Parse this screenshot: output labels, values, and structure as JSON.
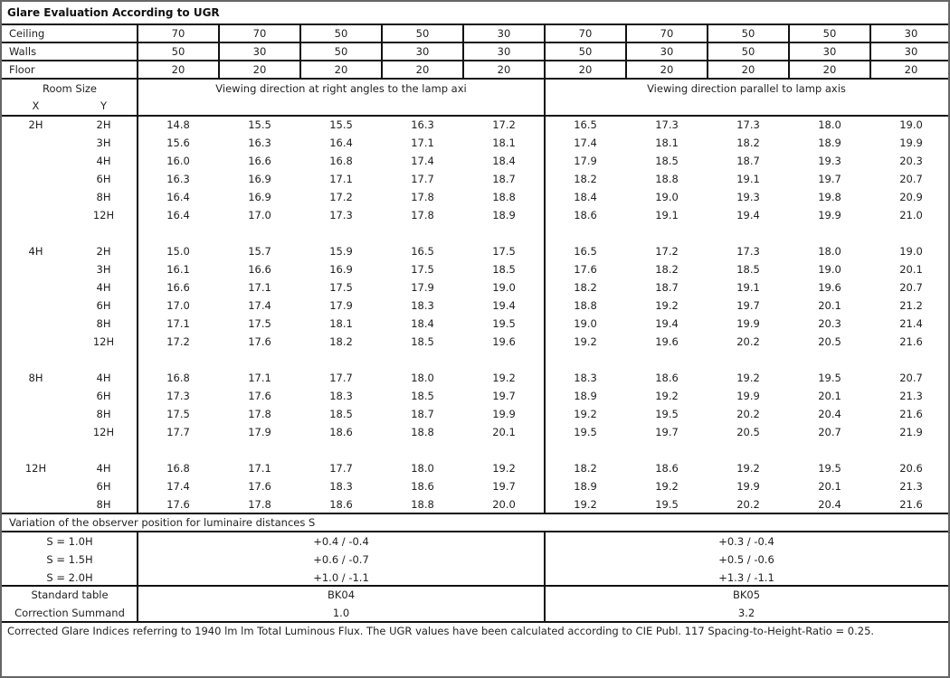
{
  "title": "Glare Evaluation According to UGR",
  "reflectances": [
    {
      "label": "Ceiling",
      "values": [
        "70",
        "70",
        "50",
        "50",
        "30",
        "70",
        "70",
        "50",
        "50",
        "30"
      ]
    },
    {
      "label": "Walls",
      "values": [
        "50",
        "30",
        "50",
        "30",
        "30",
        "50",
        "30",
        "50",
        "30",
        "30"
      ]
    },
    {
      "label": "Floor",
      "values": [
        "20",
        "20",
        "20",
        "20",
        "20",
        "20",
        "20",
        "20",
        "20",
        "20"
      ]
    }
  ],
  "room_size_label": "Room Size",
  "x_label": "X",
  "y_label": "Y",
  "direction_right_angles": "Viewing direction at right angles to the lamp axi",
  "direction_parallel": "Viewing direction parallel to lamp axis",
  "groups": [
    {
      "x": "2H",
      "rows": [
        {
          "y": "2H",
          "values": [
            "14.8",
            "15.5",
            "15.5",
            "16.3",
            "17.2",
            "16.5",
            "17.3",
            "17.3",
            "18.0",
            "19.0"
          ]
        },
        {
          "y": "3H",
          "values": [
            "15.6",
            "16.3",
            "16.4",
            "17.1",
            "18.1",
            "17.4",
            "18.1",
            "18.2",
            "18.9",
            "19.9"
          ]
        },
        {
          "y": "4H",
          "values": [
            "16.0",
            "16.6",
            "16.8",
            "17.4",
            "18.4",
            "17.9",
            "18.5",
            "18.7",
            "19.3",
            "20.3"
          ]
        },
        {
          "y": "6H",
          "values": [
            "16.3",
            "16.9",
            "17.1",
            "17.7",
            "18.7",
            "18.2",
            "18.8",
            "19.1",
            "19.7",
            "20.7"
          ]
        },
        {
          "y": "8H",
          "values": [
            "16.4",
            "16.9",
            "17.2",
            "17.8",
            "18.8",
            "18.4",
            "19.0",
            "19.3",
            "19.8",
            "20.9"
          ]
        },
        {
          "y": "12H",
          "values": [
            "16.4",
            "17.0",
            "17.3",
            "17.8",
            "18.9",
            "18.6",
            "19.1",
            "19.4",
            "19.9",
            "21.0"
          ]
        }
      ]
    },
    {
      "x": "4H",
      "rows": [
        {
          "y": "2H",
          "values": [
            "15.0",
            "15.7",
            "15.9",
            "16.5",
            "17.5",
            "16.5",
            "17.2",
            "17.3",
            "18.0",
            "19.0"
          ]
        },
        {
          "y": "3H",
          "values": [
            "16.1",
            "16.6",
            "16.9",
            "17.5",
            "18.5",
            "17.6",
            "18.2",
            "18.5",
            "19.0",
            "20.1"
          ]
        },
        {
          "y": "4H",
          "values": [
            "16.6",
            "17.1",
            "17.5",
            "17.9",
            "19.0",
            "18.2",
            "18.7",
            "19.1",
            "19.6",
            "20.7"
          ]
        },
        {
          "y": "6H",
          "values": [
            "17.0",
            "17.4",
            "17.9",
            "18.3",
            "19.4",
            "18.8",
            "19.2",
            "19.7",
            "20.1",
            "21.2"
          ]
        },
        {
          "y": "8H",
          "values": [
            "17.1",
            "17.5",
            "18.1",
            "18.4",
            "19.5",
            "19.0",
            "19.4",
            "19.9",
            "20.3",
            "21.4"
          ]
        },
        {
          "y": "12H",
          "values": [
            "17.2",
            "17.6",
            "18.2",
            "18.5",
            "19.6",
            "19.2",
            "19.6",
            "20.2",
            "20.5",
            "21.6"
          ]
        }
      ]
    },
    {
      "x": "8H",
      "rows": [
        {
          "y": "4H",
          "values": [
            "16.8",
            "17.1",
            "17.7",
            "18.0",
            "19.2",
            "18.3",
            "18.6",
            "19.2",
            "19.5",
            "20.7"
          ]
        },
        {
          "y": "6H",
          "values": [
            "17.3",
            "17.6",
            "18.3",
            "18.5",
            "19.7",
            "18.9",
            "19.2",
            "19.9",
            "20.1",
            "21.3"
          ]
        },
        {
          "y": "8H",
          "values": [
            "17.5",
            "17.8",
            "18.5",
            "18.7",
            "19.9",
            "19.2",
            "19.5",
            "20.2",
            "20.4",
            "21.6"
          ]
        },
        {
          "y": "12H",
          "values": [
            "17.7",
            "17.9",
            "18.6",
            "18.8",
            "20.1",
            "19.5",
            "19.7",
            "20.5",
            "20.7",
            "21.9"
          ]
        }
      ]
    },
    {
      "x": "12H",
      "rows": [
        {
          "y": "4H",
          "values": [
            "16.8",
            "17.1",
            "17.7",
            "18.0",
            "19.2",
            "18.2",
            "18.6",
            "19.2",
            "19.5",
            "20.6"
          ]
        },
        {
          "y": "6H",
          "values": [
            "17.4",
            "17.6",
            "18.3",
            "18.6",
            "19.7",
            "18.9",
            "19.2",
            "19.9",
            "20.1",
            "21.3"
          ]
        },
        {
          "y": "8H",
          "values": [
            "17.6",
            "17.8",
            "18.6",
            "18.8",
            "20.0",
            "19.2",
            "19.5",
            "20.2",
            "20.4",
            "21.6"
          ]
        }
      ]
    }
  ],
  "variation_title": "Variation of the observer position for luminaire distances S",
  "variation": [
    {
      "label": "S = 1.0H",
      "right_angles": "+0.4 / -0.4",
      "parallel": "+0.3 / -0.4"
    },
    {
      "label": "S = 1.5H",
      "right_angles": "+0.6 / -0.7",
      "parallel": "+0.5 / -0.6"
    },
    {
      "label": "S = 2.0H",
      "right_angles": "+1.0 / -1.1",
      "parallel": "+1.3 / -1.1"
    }
  ],
  "standard_table": {
    "label": "Standard table",
    "right_angles": "BK04",
    "parallel": "BK05"
  },
  "correction_summand": {
    "label": "Correction Summand",
    "right_angles": "1.0",
    "parallel": "3.2"
  },
  "footnote": "Corrected Glare Indices referring to 1940 lm lm Total Luminous Flux. The UGR values have been calculated according to CIE Publ. 117    Spacing-to-Height-Ratio = 0.25."
}
